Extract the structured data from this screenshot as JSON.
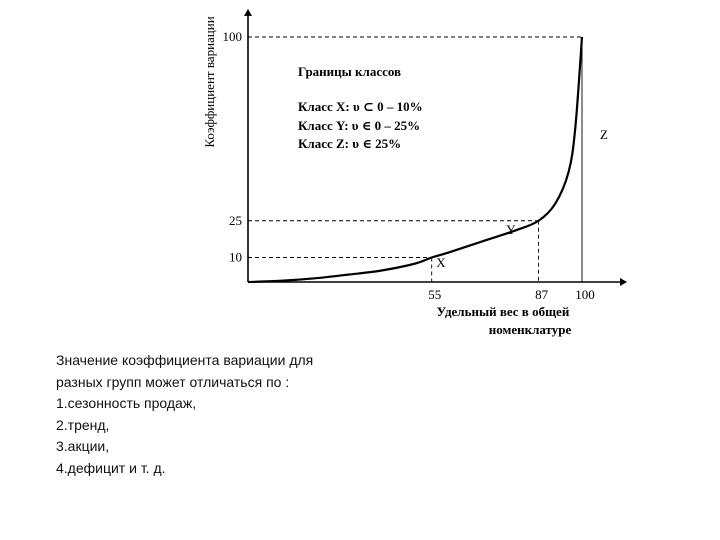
{
  "chart_data": {
    "type": "line",
    "title": "",
    "ylabel": "Коэффициент вариации",
    "xlabel": "Удельный вес в общей номенклатуре",
    "xlim": [
      0,
      100
    ],
    "ylim": [
      0,
      100
    ],
    "x_ticks": [
      "55",
      "87",
      "100"
    ],
    "y_ticks": [
      "10",
      "25",
      "100"
    ],
    "series": [
      {
        "x": [
          0,
          10,
          20,
          30,
          40,
          50,
          55,
          60,
          70,
          80,
          87,
          92,
          96,
          98,
          100
        ],
        "y": [
          0,
          0.5,
          1.5,
          3,
          4.7,
          7.5,
          10,
          12,
          16.5,
          21,
          25,
          32,
          45,
          63,
          100
        ]
      }
    ],
    "boundaries": [
      {
        "x": 55,
        "y": 10
      },
      {
        "x": 87,
        "y": 25
      },
      {
        "x": 100,
        "y": 100
      }
    ],
    "legend": {
      "title": "Границы классов",
      "items": [
        "Класс X: υ ⊂ 0 – 10%",
        "Класс Y: υ ∈ 0 – 25%",
        "Класс Z: υ ∈ 25%"
      ]
    },
    "region_labels": [
      "X",
      "Y",
      "Z"
    ]
  },
  "caption": {
    "lines": [
      "Значение коэффициента вариации для",
      "разных групп может отличаться по :",
      "1.сезонность продаж,",
      "2.тренд,",
      "3.акции,",
      "4.дефицит и т. д."
    ]
  }
}
